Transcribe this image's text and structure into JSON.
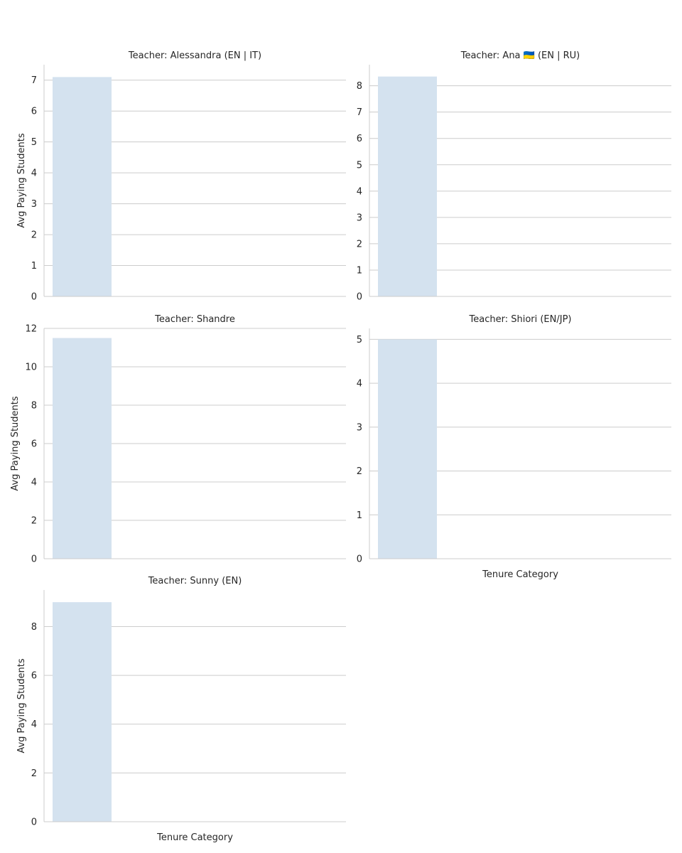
{
  "colors": {
    "bar": "#d4e2ef",
    "grid": "#cccccc",
    "spine": "#cccccc",
    "text": "#262626"
  },
  "chart_data": [
    {
      "type": "bar",
      "title": "Teacher: Alessandra (EN | IT)",
      "categories": [
        ""
      ],
      "values": [
        7.1
      ],
      "xlabel": "",
      "ylabel": "Avg Paying Students",
      "ylim": [
        0,
        7.5
      ],
      "yticks": [
        0,
        1,
        2,
        3,
        4,
        5,
        6,
        7
      ],
      "grid": true
    },
    {
      "type": "bar",
      "title": "Teacher: Ana 🇺🇦 (EN | RU)",
      "categories": [
        ""
      ],
      "values": [
        8.35
      ],
      "xlabel": "",
      "ylabel": "",
      "ylim": [
        0,
        8.8
      ],
      "yticks": [
        0,
        1,
        2,
        3,
        4,
        5,
        6,
        7,
        8
      ],
      "grid": true
    },
    {
      "type": "bar",
      "title": "Teacher: Shandre",
      "categories": [
        ""
      ],
      "values": [
        11.5
      ],
      "xlabel": "",
      "ylabel": "Avg Paying Students",
      "ylim": [
        0,
        12.0
      ],
      "yticks": [
        0,
        2,
        4,
        6,
        8,
        10,
        12
      ],
      "grid": true
    },
    {
      "type": "bar",
      "title": "Teacher: Shiori (EN/JP)",
      "categories": [
        ""
      ],
      "values": [
        5.0
      ],
      "xlabel": "Tenure Category",
      "ylabel": "",
      "ylim": [
        0,
        5.25
      ],
      "yticks": [
        0,
        1,
        2,
        3,
        4,
        5
      ],
      "grid": true
    },
    {
      "type": "bar",
      "title": "Teacher: Sunny (EN)",
      "categories": [
        ""
      ],
      "values": [
        9.0
      ],
      "xlabel": "Tenure Category",
      "ylabel": "Avg Paying Students",
      "ylim": [
        0,
        9.5
      ],
      "yticks": [
        0,
        2,
        4,
        6,
        8
      ],
      "grid": true
    }
  ]
}
